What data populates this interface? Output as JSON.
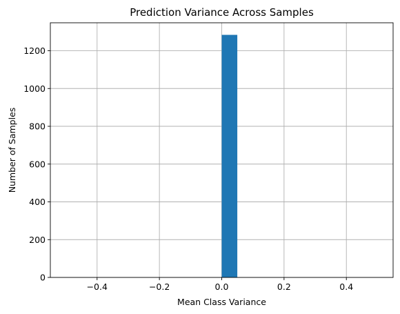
{
  "chart_data": {
    "type": "bar",
    "title": "Prediction Variance Across Samples",
    "xlabel": "Mean Class Variance",
    "ylabel": "Number of Samples",
    "xlim": [
      -0.55,
      0.55
    ],
    "ylim": [
      0,
      1348
    ],
    "xticks": [
      -0.4,
      -0.2,
      0.0,
      0.2,
      0.4
    ],
    "xtick_labels": [
      "−0.4",
      "−0.2",
      "0.0",
      "0.2",
      "0.4"
    ],
    "yticks": [
      0,
      200,
      400,
      600,
      800,
      1000,
      1200
    ],
    "ytick_labels": [
      "0",
      "200",
      "400",
      "600",
      "800",
      "1000",
      "1200"
    ],
    "grid": true,
    "bins": [
      {
        "x0": 0.0,
        "x1": 0.05,
        "value": 1284
      }
    ],
    "bar_color": "#1f77b4"
  }
}
